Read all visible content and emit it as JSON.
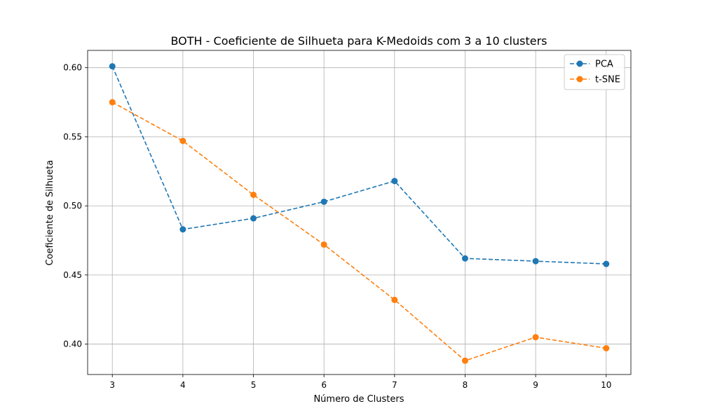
{
  "chart_data": {
    "type": "line",
    "title": "BOTH - Coeficiente de Silhueta para K-Medoids com 3 a 10 clusters",
    "xlabel": "Número de Clusters",
    "ylabel": "Coeficiente de Silhueta",
    "x": [
      3,
      4,
      5,
      6,
      7,
      8,
      9,
      10
    ],
    "xlim": [
      2.65,
      10.35
    ],
    "ylim": [
      0.378,
      0.6125
    ],
    "yticks": [
      0.4,
      0.45,
      0.5,
      0.55,
      0.6
    ],
    "ytick_labels": [
      "0.40",
      "0.45",
      "0.50",
      "0.55",
      "0.60"
    ],
    "xtick_labels": [
      "3",
      "4",
      "5",
      "6",
      "7",
      "8",
      "9",
      "10"
    ],
    "grid": true,
    "legend_position": "top-right",
    "series": [
      {
        "name": "PCA",
        "color": "#1f77b4",
        "line_style": "dashed",
        "marker": "circle",
        "values": [
          0.601,
          0.483,
          0.491,
          0.503,
          0.518,
          0.462,
          0.46,
          0.458
        ]
      },
      {
        "name": "t-SNE",
        "color": "#ff7f0e",
        "line_style": "dashed",
        "marker": "circle",
        "values": [
          0.575,
          0.547,
          0.508,
          0.472,
          0.432,
          0.388,
          0.405,
          0.397
        ]
      }
    ]
  }
}
